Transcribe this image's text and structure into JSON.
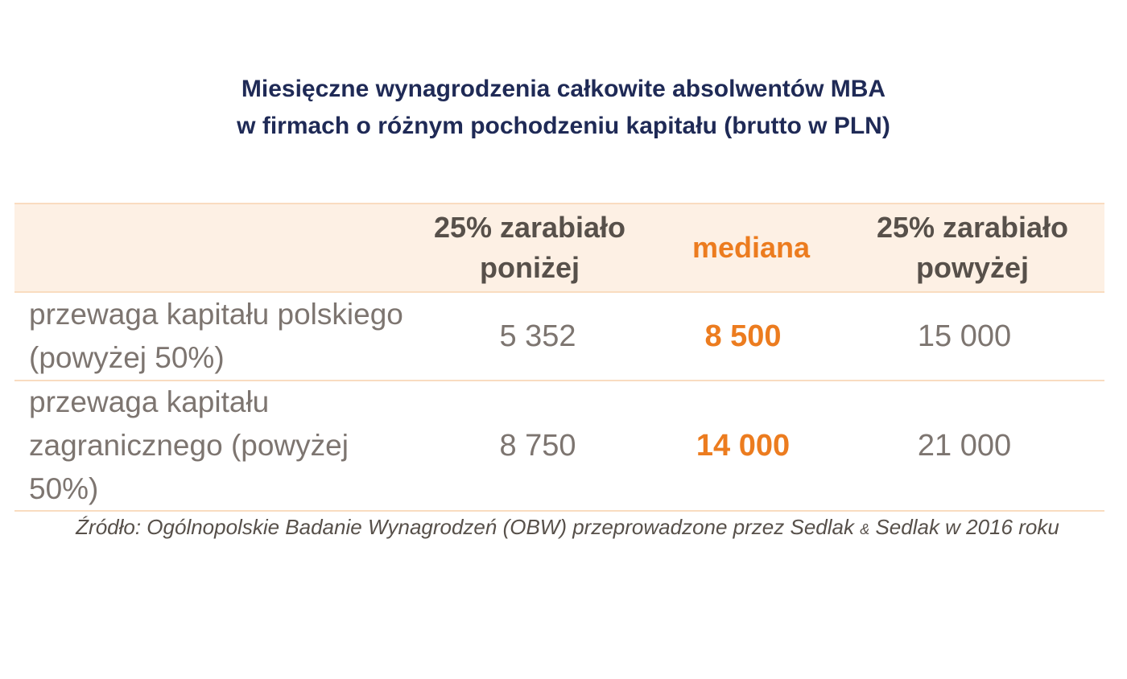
{
  "title": {
    "line1": "Miesięczne wynagrodzenia całkowite absolwentów MBA",
    "line2": "w firmach o różnym pochodzeniu kapitału (brutto w PLN)"
  },
  "table": {
    "headers": {
      "label": "",
      "col1_line1": "25% zarabiało",
      "col1_line2": "poniżej",
      "col2": "mediana",
      "col3_line1": "25% zarabiało",
      "col3_line2": "powyżej"
    },
    "rows": [
      {
        "label": "przewaga kapitału polskiego (powyżej 50%)",
        "below": "5 352",
        "median": "8 500",
        "above": "15 000"
      },
      {
        "label": "przewaga kapitału zagranicznego (powyżej 50%)",
        "below": "8 750",
        "median": "14 000",
        "above": "21 000"
      }
    ]
  },
  "source": {
    "before": "Źródło: Ogólnopolskie Badanie Wynagrodzeń (OBW) przeprowadzone przez Sedlak ",
    "amp": "&",
    "after": " Sedlak w 2016 roku"
  },
  "colors": {
    "title": "#1f2a56",
    "header_text": "#57504a",
    "accent": "#ec7c1f",
    "body_text": "#7d7570",
    "header_bg": "#fdf0e4",
    "rule": "#f9dcc0"
  }
}
